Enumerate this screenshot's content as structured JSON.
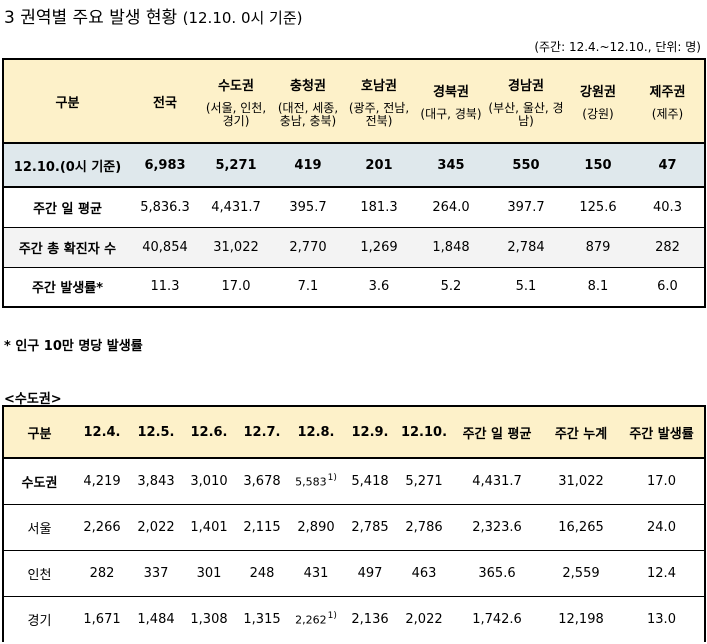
{
  "title": "3 권역별 주요 발생 현황",
  "title_paren": "(12.10. 0시 기준)",
  "unit": "(주간: 12.4.~12.10., 단위: 명)",
  "table1": {
    "col_header": "구분",
    "national": "전국",
    "regions": [
      {
        "name": "수도권",
        "sub": "(서울, 인천, 경기)"
      },
      {
        "name": "충청권",
        "sub": "(대전, 세종, 충남, 충북)"
      },
      {
        "name": "호남권",
        "sub": "(광주, 전남, 전북)"
      },
      {
        "name": "경북권",
        "sub": "(대구, 경북)"
      },
      {
        "name": "경남권",
        "sub": "(부산, 울산, 경남)"
      },
      {
        "name": "강원권",
        "sub": "(강원)"
      },
      {
        "name": "제주권",
        "sub": "(제주)"
      }
    ],
    "rows": [
      {
        "label": "12.10.(0시 기준)",
        "values": [
          "6,983",
          "5,271",
          "419",
          "201",
          "345",
          "550",
          "150",
          "47"
        ]
      },
      {
        "label": "주간 일 평균",
        "values": [
          "5,836.3",
          "4,431.7",
          "395.7",
          "181.3",
          "264.0",
          "397.7",
          "125.6",
          "40.3"
        ]
      },
      {
        "label": "주간 총 확진자 수",
        "values": [
          "40,854",
          "31,022",
          "2,770",
          "1,269",
          "1,848",
          "2,784",
          "879",
          "282"
        ]
      },
      {
        "label": "주간 발생률*",
        "values": [
          "11.3",
          "17.0",
          "7.1",
          "3.6",
          "5.2",
          "5.1",
          "8.1",
          "6.0"
        ]
      }
    ]
  },
  "note": "* 인구 10만 명당 발생률",
  "subtitle": "<수도권>",
  "table2": {
    "headers": [
      "구분",
      "12.4.",
      "12.5.",
      "12.6.",
      "12.7.",
      "12.8.",
      "12.9.",
      "12.10.",
      "주간 일 평균",
      "주간 누계",
      "주간 발생률"
    ],
    "footnote_mark": "1)",
    "rows": [
      {
        "label": "수도권",
        "values": [
          "4,219",
          "3,843",
          "3,010",
          "3,678",
          "5,583",
          "5,418",
          "5,271",
          "4,431.7",
          "31,022",
          "17.0"
        ]
      },
      {
        "label": "서울",
        "values": [
          "2,266",
          "2,022",
          "1,401",
          "2,115",
          "2,890",
          "2,785",
          "2,786",
          "2,323.6",
          "16,265",
          "24.0"
        ]
      },
      {
        "label": "인천",
        "values": [
          "282",
          "337",
          "301",
          "248",
          "431",
          "497",
          "463",
          "365.6",
          "2,559",
          "12.4"
        ]
      },
      {
        "label": "경기",
        "values": [
          "1,671",
          "1,484",
          "1,308",
          "1,315",
          "2,262",
          "2,136",
          "2,022",
          "1,742.6",
          "12,198",
          "13.0"
        ]
      }
    ]
  },
  "colors": {
    "header_bg": "#fdf1c9",
    "highlight_row_bg": "#dfe8ec",
    "shade_row_bg": "#f3f3f3"
  }
}
